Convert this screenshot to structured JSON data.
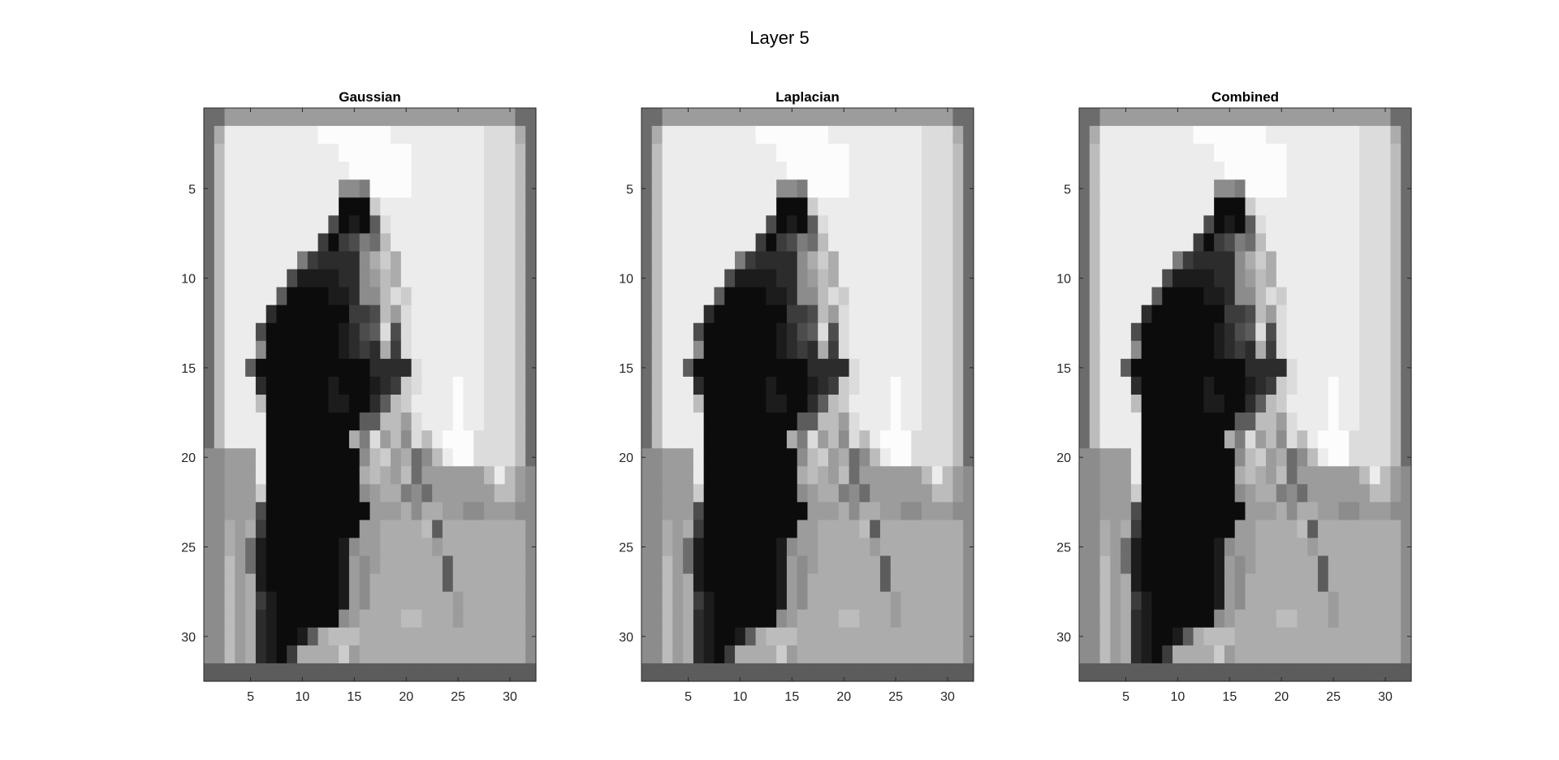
{
  "figure": {
    "title": "Layer 5"
  },
  "chart_data": [
    {
      "type": "heatmap",
      "title": "Gaussian",
      "xlabel": "",
      "ylabel": "",
      "xlim": [
        0.5,
        32.5
      ],
      "ylim": [
        0.5,
        32.5
      ],
      "xticks": [
        5,
        10,
        15,
        20,
        25,
        30
      ],
      "yticks": [
        5,
        10,
        15,
        20,
        25,
        30
      ],
      "y_direction": "reverse",
      "colormap": "gray",
      "grid": false,
      "rows": 32,
      "cols": 32,
      "matrix": "shared.gaussian_grid"
    },
    {
      "type": "heatmap",
      "title": "Laplacian",
      "xlabel": "",
      "ylabel": "",
      "xlim": [
        0.5,
        32.5
      ],
      "ylim": [
        0.5,
        32.5
      ],
      "xticks": [
        5,
        10,
        15,
        20,
        25,
        30
      ],
      "yticks": [
        5,
        10,
        15,
        20,
        25,
        30
      ],
      "y_direction": "reverse",
      "colormap": "gray",
      "grid": false,
      "rows": 32,
      "cols": 32,
      "matrix": "shared.gaussian_grid"
    },
    {
      "type": "heatmap",
      "title": "Combined",
      "xlabel": "",
      "ylabel": "",
      "xlim": [
        0.5,
        32.5
      ],
      "ylim": [
        0.5,
        32.5
      ],
      "xticks": [
        5,
        10,
        15,
        20,
        25,
        30
      ],
      "yticks": [
        5,
        10,
        15,
        20,
        25,
        30
      ],
      "y_direction": "reverse",
      "colormap": "gray",
      "grid": false,
      "rows": 32,
      "cols": 32,
      "matrix": "shared.gaussian_grid"
    }
  ],
  "shared": {
    "gaussian_grid": [
      "66999999999999999999999999999966",
      "6AEEEEEEEEEFFFFFFFEEEEEEEEEDDDA6",
      "6BEEEEEEEEEEEFFFFFFFEEEEEEEDDDB6",
      "6BEEEEEEEEEEEEFFFFFFEEEEEEEDDDB6",
      "6BEEEEEEEEEEE887FFFFEEEEEEEDDDB6",
      "6BEEEEEEEEEEE000CEEEEEEEEEEDDDB6",
      "6BEEEEEEEEEE40105DEEEEEEEEEDDDB6",
      "6BEEEEEEEEE303476BEEEEEEEEEDDDB6",
      "6BEEEEEEE7322228ACAEEEEEEEEDDDB6",
      "6BEEEEEE411112289BAEEEEEEEEDDDB6",
      "6BEEEEE5000011288BDCEEEEEEEDDDB6",
      "6BEEEE20000000334B9DEEEEEEEDDDB6",
      "6BEEE400000001245D4DEEEEEEEDDDB6",
      "6BEEE800000001232A3DEEEEEEEDDDB6",
      "6BEE5000000000002222DEEEEEEDDDB6",
      "6BEEE20000001000123CDEEEFEEDDDB6",
      "6BEEEB000000110025BCEEEEFEEDDDB6",
      "6BEEEE00000000055BB9DEEEFEEDDDB6",
      "6BEEEE00000000A7D9B8DBEFFFDDDDB6",
      "88999E0000000008BC9A68BEFFDDDDB6",
      "88999E000000000ABA9B6999999BEB98",
      "88999C00000000089AA786999999BB98",
      "8899940000000000999A8AA998899988",
      "88A9A300000000099AAAAB5AAAAAAAA8",
      "88A96100000001899AAAAA9AAAAAAAA8",
      "88B96100000001989AAAAAA5AAAAAAA8",
      "88B9A10000000198AAAAAAA5AAAAAAA8",
      "88B9A31000000198AAAAAAAA9AAAAAA8",
      "88B9A2100000089AAAABBAAA9AAAAAA8",
      "88B9A210015ABBBAAAAAAAAAAAAAAAA8",
      "88B9A2103AAAAC9AAAAAAAAAAAAAAAA8",
      "55555555555555555555555555555555"
    ]
  }
}
